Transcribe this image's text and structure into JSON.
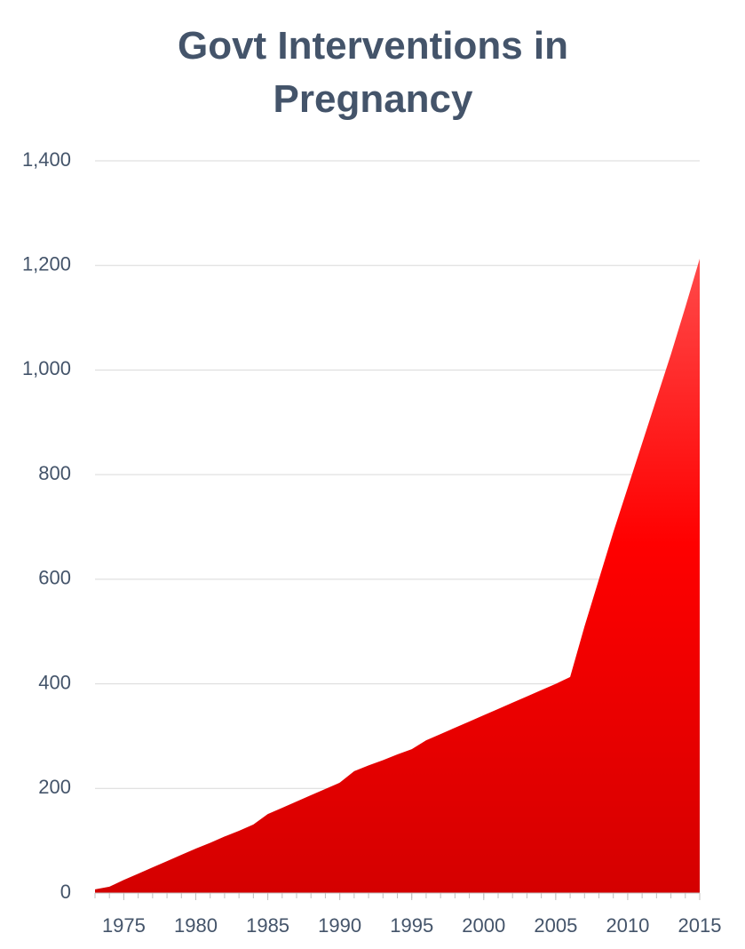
{
  "chart_data": {
    "type": "area",
    "title": "Govt Interventions in Pregnancy",
    "x": [
      1973,
      1974,
      1975,
      1976,
      1977,
      1978,
      1979,
      1980,
      1981,
      1982,
      1983,
      1984,
      1985,
      1986,
      1987,
      1988,
      1989,
      1990,
      1991,
      1992,
      1993,
      1994,
      1995,
      1996,
      1997,
      1998,
      1999,
      2000,
      2001,
      2002,
      2003,
      2004,
      2005,
      2006,
      2007,
      2008,
      2009,
      2010,
      2011,
      2012,
      2013,
      2014,
      2015
    ],
    "values": [
      7,
      12,
      25,
      37,
      49,
      61,
      73,
      85,
      96,
      108,
      119,
      131,
      151,
      163,
      175,
      187,
      199,
      211,
      233,
      244,
      254,
      265,
      275,
      292,
      304,
      316,
      328,
      340,
      352,
      364,
      376,
      388,
      400,
      413,
      510,
      600,
      690,
      775,
      860,
      945,
      1030,
      1120,
      1213
    ],
    "color": "#ff0000",
    "xlim": [
      1973,
      2015
    ],
    "xticks": [
      1975,
      1980,
      1985,
      1990,
      1995,
      2000,
      2005,
      2010,
      2015
    ],
    "ylim": [
      0,
      1400
    ],
    "yticks": [
      0,
      200,
      400,
      600,
      800,
      {
        "value": 1000,
        "label": "1,000"
      },
      {
        "value": 1200,
        "label": "1,200"
      },
      {
        "value": 1400,
        "label": "1,400"
      }
    ],
    "grid": true
  }
}
